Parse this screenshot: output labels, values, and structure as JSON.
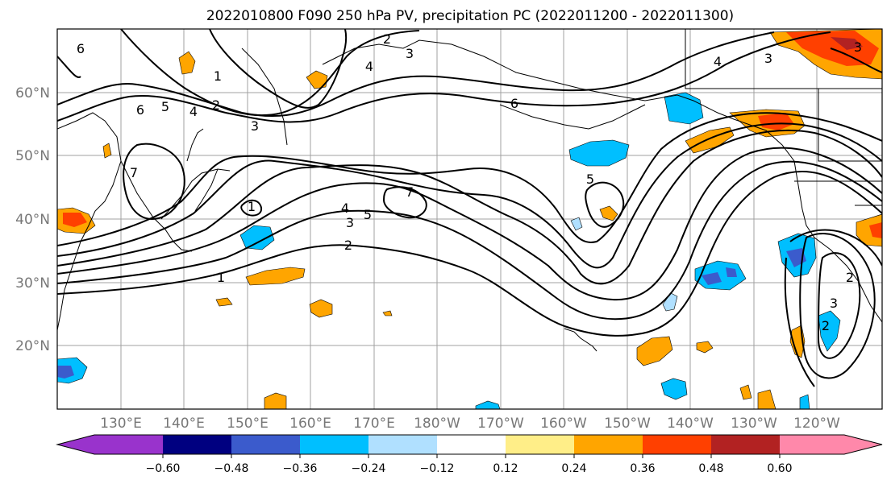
{
  "title": "2022010800 F090 250 hPa PV, precipitation PC (2022011200 - 2022011300)",
  "latitude_labels": [
    "60°N",
    "50°N",
    "40°N",
    "30°N",
    "20°N"
  ],
  "longitude_labels": [
    "130°E",
    "140°E",
    "150°E",
    "160°E",
    "170°E",
    "180°W",
    "170°W",
    "160°W",
    "150°W",
    "140°W",
    "130°W",
    "120°W"
  ],
  "colorbar": {
    "tick_labels": [
      "−0.60",
      "−0.48",
      "−0.36",
      "−0.24",
      "−0.12",
      "0.12",
      "0.24",
      "0.36",
      "0.48",
      "0.60"
    ],
    "colors": [
      "#9933cc",
      "#000080",
      "#3b5bcc",
      "#00bfff",
      "#b0e0ff",
      "#ffffff",
      "#ffee88",
      "#ffa500",
      "#ff4000",
      "#b22222",
      "#ff88aa"
    ]
  },
  "contour_labels": [
    {
      "id": "c6a",
      "text": "6"
    },
    {
      "id": "c2a",
      "text": "2"
    },
    {
      "id": "c3a",
      "text": "3"
    },
    {
      "id": "c4a",
      "text": "4"
    },
    {
      "id": "c1a",
      "text": "1"
    },
    {
      "id": "c6b",
      "text": "6"
    },
    {
      "id": "c5a",
      "text": "5"
    },
    {
      "id": "c4b",
      "text": "4"
    },
    {
      "id": "c2b",
      "text": "2"
    },
    {
      "id": "c3b",
      "text": "3"
    },
    {
      "id": "c6c",
      "text": "6"
    },
    {
      "id": "c4c",
      "text": "4"
    },
    {
      "id": "c3c",
      "text": "3"
    },
    {
      "id": "c3d",
      "text": "3"
    },
    {
      "id": "c7a",
      "text": "7"
    },
    {
      "id": "c7b",
      "text": "7"
    },
    {
      "id": "c4d",
      "text": "4"
    },
    {
      "id": "c5b",
      "text": "5"
    },
    {
      "id": "c3e",
      "text": "3"
    },
    {
      "id": "c2c",
      "text": "2"
    },
    {
      "id": "c1b",
      "text": "1"
    },
    {
      "id": "c5c",
      "text": "5"
    },
    {
      "id": "c1c",
      "text": "1"
    },
    {
      "id": "c2d",
      "text": "2"
    },
    {
      "id": "c3f",
      "text": "3"
    },
    {
      "id": "c2e",
      "text": "2"
    }
  ]
}
